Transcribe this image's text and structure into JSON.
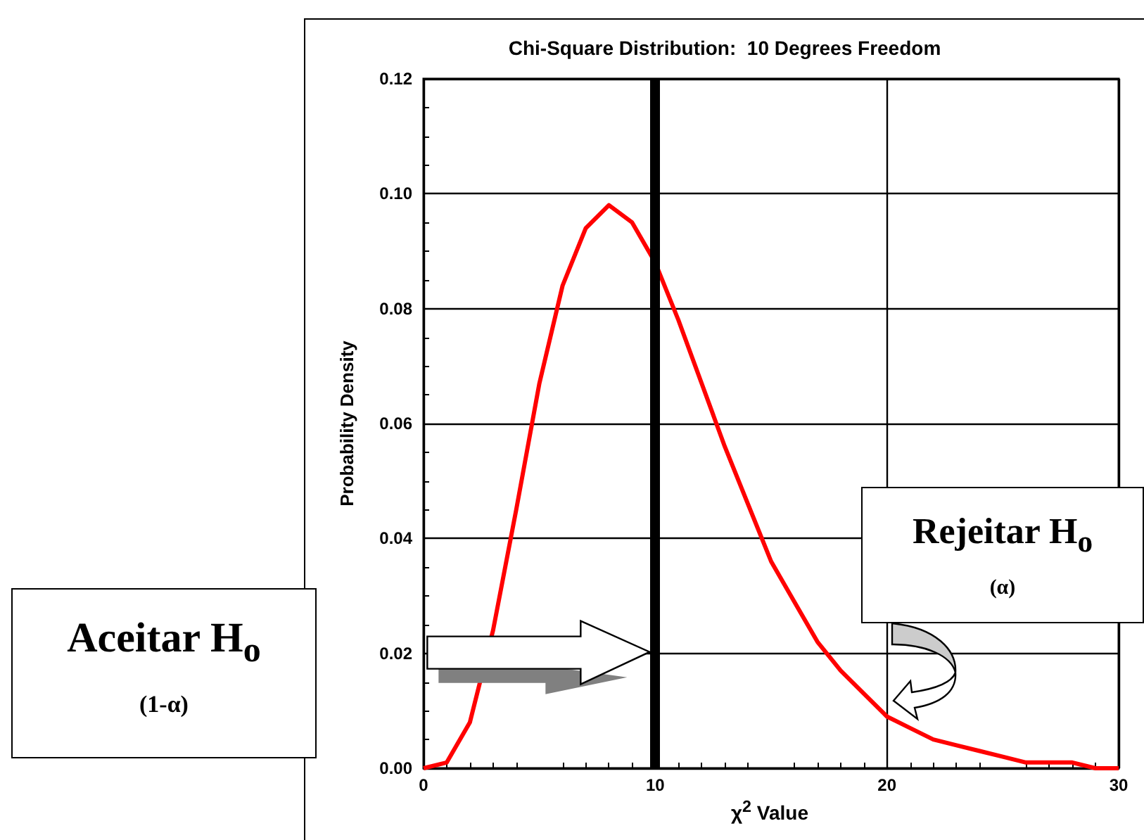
{
  "chart_data": {
    "type": "line",
    "title": "Chi-Square Distribution:  10 Degrees Freedom",
    "xlabel": "χ$^{2}$ Value",
    "ylabel": "Probability Density",
    "x": [
      0,
      1,
      2,
      3,
      4,
      5,
      6,
      7,
      8,
      9,
      10,
      11,
      12,
      13,
      14,
      15,
      16,
      17,
      18,
      19,
      20,
      21,
      22,
      23,
      24,
      25,
      26,
      27,
      28,
      29,
      30
    ],
    "series": [
      {
        "color": "#ff0000",
        "values": [
          0,
          0.001,
          0.008,
          0.024,
          0.045,
          0.067,
          0.084,
          0.094,
          0.098,
          0.095,
          0.088,
          0.078,
          0.067,
          0.056,
          0.046,
          0.036,
          0.029,
          0.022,
          0.017,
          0.013,
          0.009,
          0.007,
          0.005,
          0.004,
          0.003,
          0.002,
          0.001,
          0.001,
          0.001,
          0.0,
          0.0
        ]
      }
    ],
    "xlim": [
      0,
      30
    ],
    "xticks": [
      0,
      10,
      20,
      30
    ],
    "ylim": [
      0,
      0.12
    ],
    "yticks": [
      {
        "value": 0,
        "label": "0.00"
      },
      {
        "value": 0.02,
        "label": "0.02"
      },
      {
        "value": 0.04,
        "label": "0.04"
      },
      {
        "value": 0.06,
        "label": "0.06"
      },
      {
        "value": 0.08,
        "label": "0.08"
      },
      {
        "value": 0.1,
        "label": "0.10"
      },
      {
        "value": 0.12,
        "label": "0.12"
      }
    ],
    "grid": true,
    "marker": "none",
    "line_style": "solid",
    "ref_lines": [
      {
        "axis": "x",
        "value": 10,
        "color": "#000000"
      }
    ],
    "annotations": [
      "Aceitar H$_{o}$",
      "(1-α)",
      "Rejeitar H$_{o}$",
      "(α)"
    ]
  }
}
